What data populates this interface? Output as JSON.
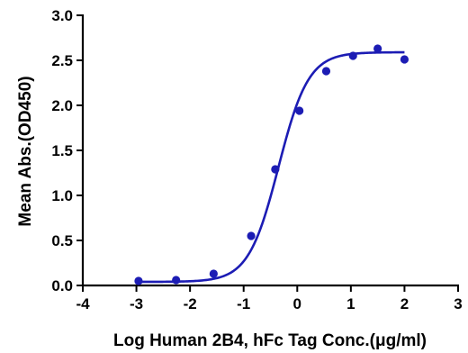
{
  "chart_data": {
    "type": "scatter",
    "title": "",
    "xlabel": "Log Human 2B4, hFc Tag Conc.(μg/ml)",
    "ylabel": "Mean Abs.(OD450)",
    "xlim": [
      -4,
      3
    ],
    "ylim": [
      0,
      3
    ],
    "x_ticks": [
      "-4",
      "-3",
      "-2",
      "-1",
      "0",
      "1",
      "2",
      "3"
    ],
    "y_ticks": [
      "0.0",
      "0.5",
      "1.0",
      "1.5",
      "2.0",
      "2.5",
      "3.0"
    ],
    "grid": false,
    "legend": "none",
    "series": [
      {
        "points": [
          {
            "x": -2.96,
            "y": 0.05
          },
          {
            "x": -2.26,
            "y": 0.06
          },
          {
            "x": -1.56,
            "y": 0.13
          },
          {
            "x": -0.86,
            "y": 0.55
          },
          {
            "x": -0.41,
            "y": 1.29
          },
          {
            "x": 0.04,
            "y": 1.94
          },
          {
            "x": 0.54,
            "y": 2.38
          },
          {
            "x": 1.04,
            "y": 2.55
          },
          {
            "x": 1.5,
            "y": 2.63
          },
          {
            "x": 2.0,
            "y": 2.51
          }
        ],
        "fit": {
          "model": "4PL",
          "bottom": 0.04,
          "top": 2.59,
          "logEC50": -0.35,
          "hill": 1.55,
          "x_range": [
            -2.96,
            2.0
          ]
        }
      }
    ],
    "colors": {
      "series": "#1c1cb4",
      "axis": "#000000"
    }
  }
}
